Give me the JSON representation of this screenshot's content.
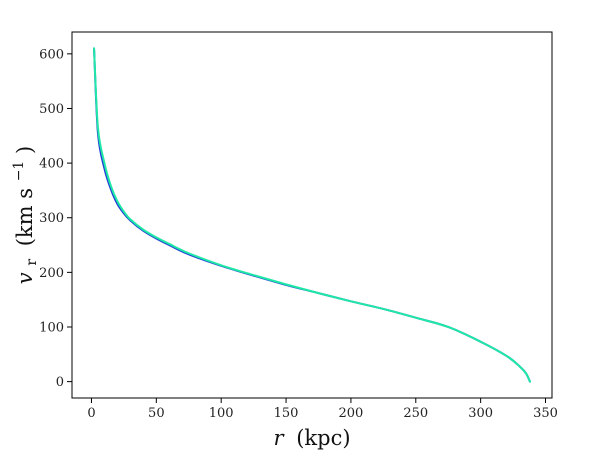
{
  "chart_data": {
    "type": "line",
    "title": "",
    "xlabel_var": "r",
    "xlabel_unit": "(kpc)",
    "ylabel_var": "v",
    "ylabel_sub": "r",
    "ylabel_unit_open": "(km s",
    "ylabel_sup": "−1",
    "ylabel_unit_close": ")",
    "xlim": [
      -15,
      355
    ],
    "ylim": [
      -30,
      640
    ],
    "xticks": [
      0,
      50,
      100,
      150,
      200,
      250,
      300,
      350
    ],
    "xtick_labels": [
      "0",
      "50",
      "100",
      "150",
      "200",
      "250",
      "300",
      "350"
    ],
    "yticks": [
      0,
      100,
      200,
      300,
      400,
      500,
      600
    ],
    "ytick_labels": [
      "0",
      "100",
      "200",
      "300",
      "400",
      "500",
      "600"
    ],
    "grid": false,
    "legend": "none",
    "series": [
      {
        "color": "#1f3fd6",
        "x": [
          2,
          5,
          10,
          15,
          20,
          25,
          30,
          40,
          50,
          60,
          75,
          100,
          125,
          150,
          175,
          200,
          225,
          250,
          275,
          300,
          320,
          330,
          335,
          338
        ],
        "y": [
          610,
          455,
          390,
          352,
          325,
          308,
          295,
          276,
          262,
          250,
          233,
          212,
          194,
          177,
          162,
          147,
          133,
          117,
          100,
          73,
          47,
          28,
          15,
          0
        ]
      },
      {
        "color": "#1fe8a6",
        "x": [
          2,
          5,
          10,
          15,
          20,
          25,
          30,
          40,
          50,
          60,
          75,
          100,
          125,
          150,
          175,
          200,
          225,
          250,
          275,
          300,
          320,
          330,
          335,
          338
        ],
        "y": [
          610,
          465,
          400,
          358,
          330,
          311,
          297,
          278,
          264,
          252,
          235,
          213,
          195,
          178,
          162,
          147,
          133,
          117,
          100,
          73,
          47,
          28,
          15,
          0
        ]
      }
    ]
  }
}
